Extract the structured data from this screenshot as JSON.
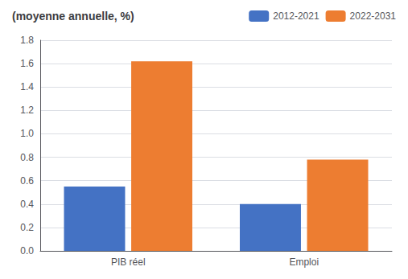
{
  "chart_data": {
    "type": "bar",
    "title": "(moyenne annuelle, %)",
    "categories": [
      "PIB réel",
      "Emploi"
    ],
    "series": [
      {
        "name": "2012-2021",
        "color": "#4472C4",
        "values": [
          0.55,
          0.4
        ]
      },
      {
        "name": "2022-2031",
        "color": "#ED7D31",
        "values": [
          1.62,
          0.78
        ]
      }
    ],
    "ylim": [
      0,
      1.8
    ],
    "yticks": [
      {
        "value": 0,
        "label": "0.0"
      },
      0.2,
      0.4,
      0.6,
      0.8,
      {
        "value": 1,
        "label": "1.0"
      },
      1.2,
      1.4,
      1.6,
      1.8
    ],
    "grid": true,
    "legend": "upper right"
  }
}
